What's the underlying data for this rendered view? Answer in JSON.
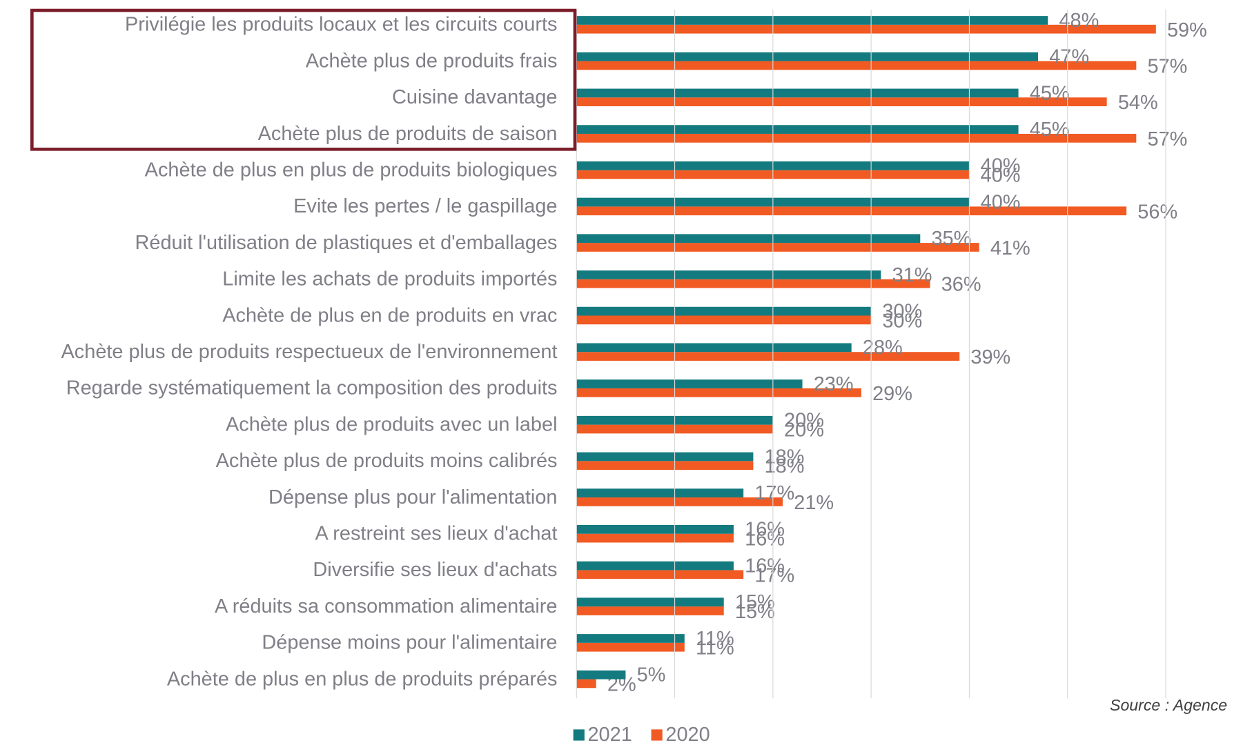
{
  "chart_data": {
    "type": "bar",
    "orientation": "horizontal",
    "categories": [
      "Privilégie les produits locaux et les circuits courts",
      "Achète plus de produits frais",
      "Cuisine davantage",
      "Achète plus de produits de saison",
      "Achète de plus en plus de produits biologiques",
      "Evite les pertes / le gaspillage",
      "Réduit l'utilisation de plastiques et d'emballages",
      "Limite les achats de produits importés",
      "Achète de plus en de produits en vrac",
      "Achète plus de produits respectueux de l'environnement",
      "Regarde systématiquement la composition des produits",
      "Achète plus de produits avec un label",
      "Achète plus de produits moins calibrés",
      "Dépense plus pour l'alimentation",
      "A restreint ses lieux d'achat",
      "Diversifie ses lieux d'achats",
      "A réduits sa consommation alimentaire",
      "Dépense moins pour l'alimentaire",
      "Achète de plus en plus de produits préparés"
    ],
    "series": [
      {
        "name": "2021",
        "color": "#137b80",
        "values": [
          48,
          47,
          45,
          45,
          40,
          40,
          35,
          31,
          30,
          28,
          23,
          20,
          18,
          17,
          16,
          16,
          15,
          11,
          5
        ],
        "value_labels": [
          "48%",
          "47%",
          "45%",
          "45%",
          "40%",
          "40%",
          "35%",
          "31%",
          "30%",
          "28%",
          "23%",
          "20%",
          "18%",
          "17%",
          "16%",
          "16%",
          "15%",
          "11%",
          "5%"
        ]
      },
      {
        "name": "2020",
        "color": "#f15a22",
        "values": [
          59,
          57,
          54,
          57,
          40,
          56,
          41,
          36,
          30,
          39,
          29,
          20,
          18,
          21,
          16,
          17,
          15,
          11,
          2
        ],
        "value_labels": [
          "59%",
          "57%",
          "54%",
          "57%",
          "40%",
          "56%",
          "41%",
          "36%",
          "30%",
          "39%",
          "29%",
          "20%",
          "18%",
          "21%",
          "16%",
          "17%",
          "15%",
          "11%",
          "2%"
        ]
      }
    ],
    "xlim": [
      0,
      60
    ],
    "xticks": [
      0,
      10,
      20,
      30,
      40,
      50,
      60
    ],
    "grid": true,
    "legend": "bottom",
    "source": "Source : Agence"
  }
}
